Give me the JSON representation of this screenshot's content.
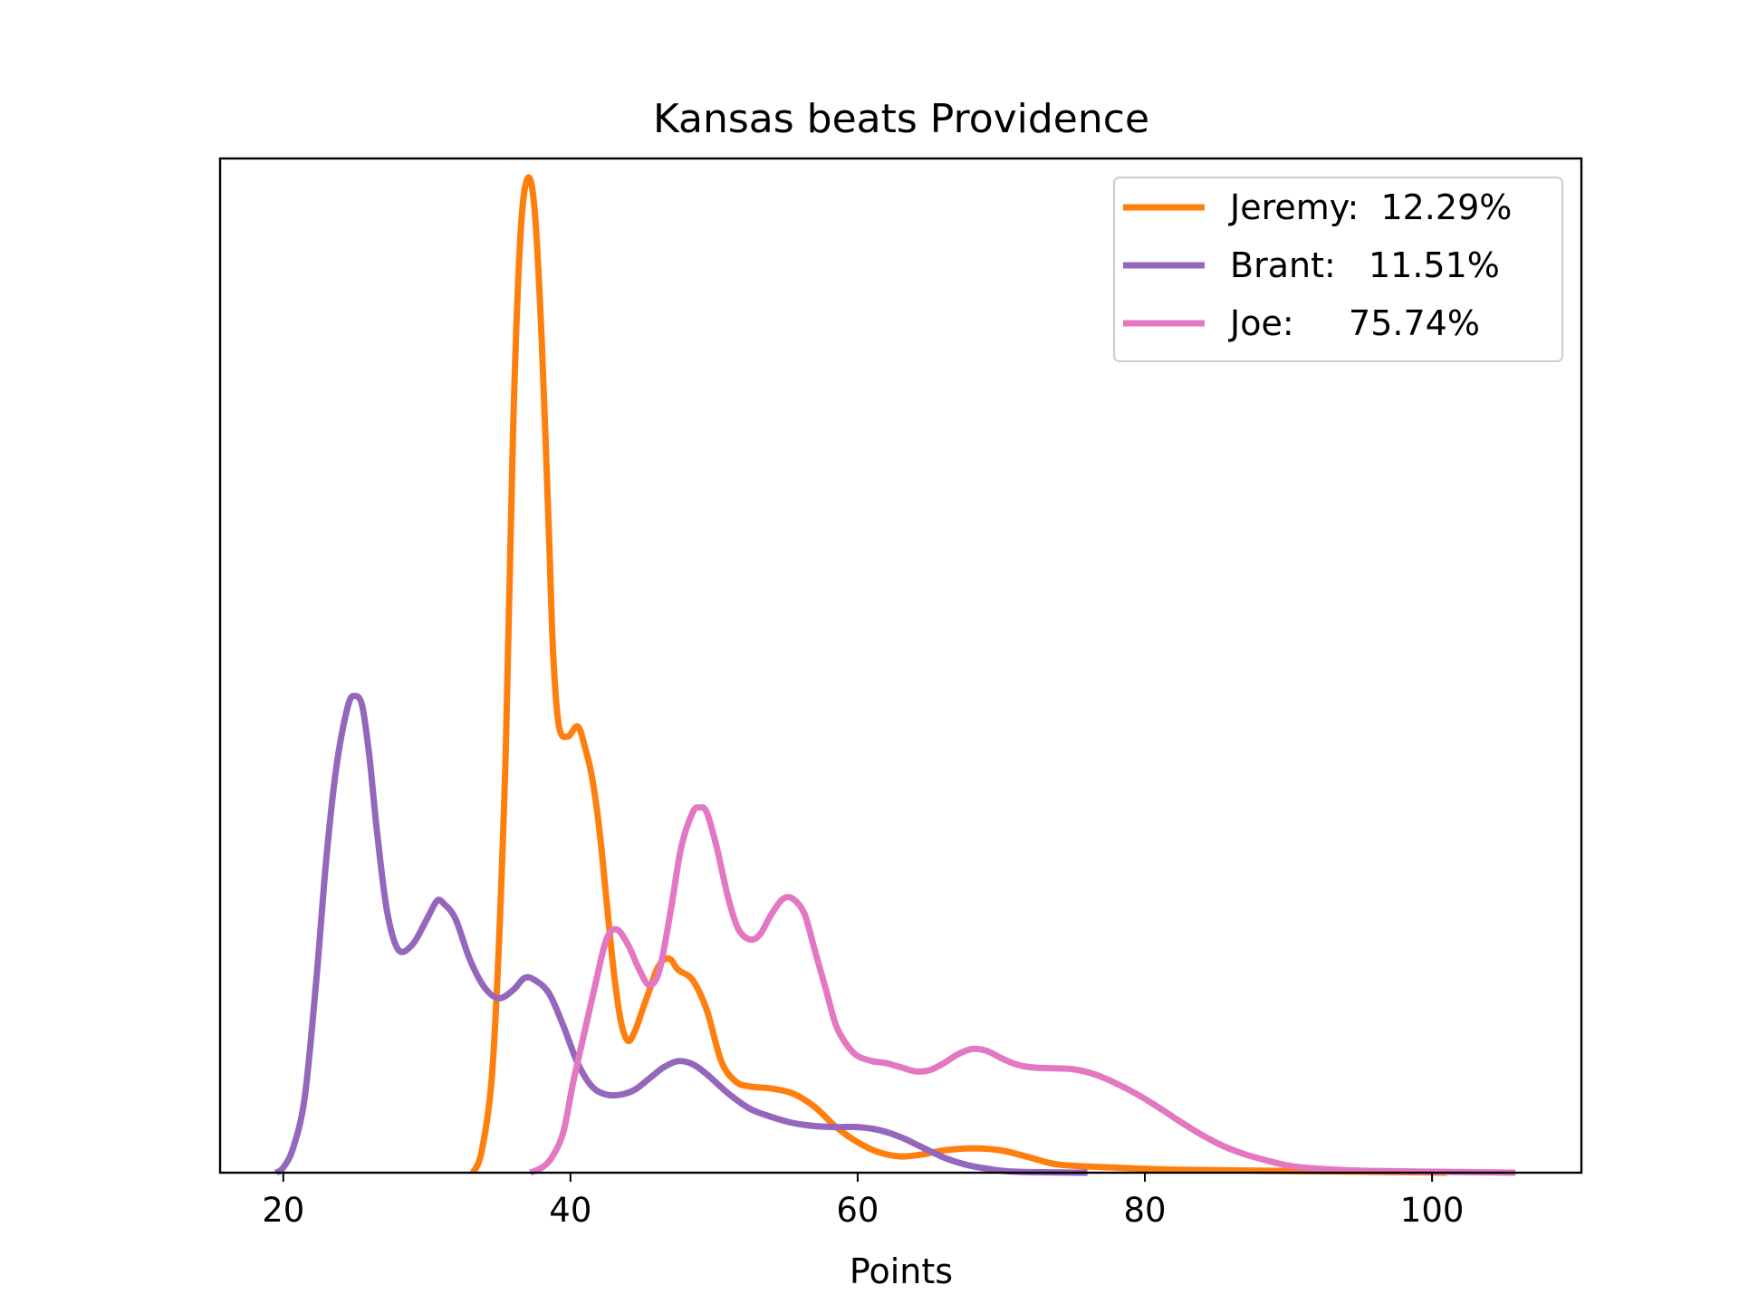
{
  "chart_data": {
    "type": "line",
    "title": "Kansas beats Providence",
    "xlabel": "Points",
    "ylabel": "",
    "xlim": [
      15.6,
      110.4
    ],
    "ylim": [
      0,
      1.0
    ],
    "x_ticks": [
      20,
      40,
      60,
      80,
      100
    ],
    "y_ticks_visible": false,
    "grid": false,
    "legend_position": "top-right",
    "series": [
      {
        "name": "Jeremy:  12.29%",
        "color": "#ff7f0e",
        "points": [
          [
            33.2,
            0.0
          ],
          [
            33.8,
            0.02
          ],
          [
            34.5,
            0.09
          ],
          [
            35.0,
            0.22
          ],
          [
            35.5,
            0.42
          ],
          [
            36.0,
            0.73
          ],
          [
            36.5,
            0.92
          ],
          [
            37.0,
            0.98
          ],
          [
            37.5,
            0.95
          ],
          [
            38.0,
            0.82
          ],
          [
            38.5,
            0.63
          ],
          [
            38.8,
            0.51
          ],
          [
            39.2,
            0.44
          ],
          [
            39.8,
            0.43
          ],
          [
            40.5,
            0.44
          ],
          [
            41.0,
            0.42
          ],
          [
            41.5,
            0.39
          ],
          [
            42.0,
            0.34
          ],
          [
            42.5,
            0.27
          ],
          [
            43.0,
            0.2
          ],
          [
            43.5,
            0.15
          ],
          [
            44.0,
            0.13
          ],
          [
            44.5,
            0.14
          ],
          [
            45.0,
            0.16
          ],
          [
            45.5,
            0.18
          ],
          [
            46.0,
            0.2
          ],
          [
            46.5,
            0.21
          ],
          [
            47.0,
            0.21
          ],
          [
            47.5,
            0.2
          ],
          [
            48.5,
            0.19
          ],
          [
            49.5,
            0.16
          ],
          [
            50.5,
            0.11
          ],
          [
            51.5,
            0.09
          ],
          [
            52.5,
            0.085
          ],
          [
            54.0,
            0.083
          ],
          [
            55.5,
            0.078
          ],
          [
            57.0,
            0.065
          ],
          [
            58.5,
            0.045
          ],
          [
            60.0,
            0.03
          ],
          [
            61.5,
            0.02
          ],
          [
            63.0,
            0.016
          ],
          [
            64.5,
            0.018
          ],
          [
            66.0,
            0.022
          ],
          [
            68.0,
            0.024
          ],
          [
            70.0,
            0.022
          ],
          [
            72.0,
            0.015
          ],
          [
            74.0,
            0.008
          ],
          [
            78.0,
            0.005
          ],
          [
            82.0,
            0.003
          ],
          [
            88.0,
            0.002
          ],
          [
            95.0,
            0.001
          ],
          [
            101.0,
            0.0
          ]
        ]
      },
      {
        "name": "Brant:   11.51%",
        "color": "#9467bd",
        "points": [
          [
            19.5,
            0.0
          ],
          [
            20.0,
            0.005
          ],
          [
            20.7,
            0.025
          ],
          [
            21.5,
            0.075
          ],
          [
            22.3,
            0.19
          ],
          [
            23.0,
            0.31
          ],
          [
            23.7,
            0.4
          ],
          [
            24.5,
            0.46
          ],
          [
            25.0,
            0.47
          ],
          [
            25.5,
            0.46
          ],
          [
            26.0,
            0.41
          ],
          [
            26.5,
            0.34
          ],
          [
            27.2,
            0.26
          ],
          [
            28.0,
            0.22
          ],
          [
            29.0,
            0.225
          ],
          [
            30.0,
            0.25
          ],
          [
            30.7,
            0.268
          ],
          [
            31.2,
            0.265
          ],
          [
            32.0,
            0.25
          ],
          [
            33.0,
            0.21
          ],
          [
            34.0,
            0.183
          ],
          [
            35.0,
            0.172
          ],
          [
            36.0,
            0.18
          ],
          [
            36.8,
            0.192
          ],
          [
            37.5,
            0.19
          ],
          [
            38.5,
            0.177
          ],
          [
            39.5,
            0.145
          ],
          [
            40.5,
            0.108
          ],
          [
            41.5,
            0.085
          ],
          [
            42.5,
            0.077
          ],
          [
            43.5,
            0.077
          ],
          [
            44.5,
            0.082
          ],
          [
            45.5,
            0.093
          ],
          [
            46.5,
            0.104
          ],
          [
            47.5,
            0.11
          ],
          [
            48.5,
            0.107
          ],
          [
            49.5,
            0.097
          ],
          [
            51.0,
            0.078
          ],
          [
            52.5,
            0.063
          ],
          [
            54.0,
            0.055
          ],
          [
            55.5,
            0.049
          ],
          [
            57.0,
            0.046
          ],
          [
            58.5,
            0.045
          ],
          [
            60.0,
            0.045
          ],
          [
            61.5,
            0.042
          ],
          [
            63.0,
            0.035
          ],
          [
            64.5,
            0.025
          ],
          [
            66.0,
            0.015
          ],
          [
            67.5,
            0.008
          ],
          [
            69.0,
            0.004
          ],
          [
            71.0,
            0.001
          ],
          [
            76.0,
            0.0
          ]
        ]
      },
      {
        "name": "Joe:     75.74%",
        "color": "#e377c2",
        "points": [
          [
            37.2,
            0.0
          ],
          [
            38.0,
            0.005
          ],
          [
            38.7,
            0.015
          ],
          [
            39.5,
            0.04
          ],
          [
            40.2,
            0.09
          ],
          [
            41.0,
            0.14
          ],
          [
            41.8,
            0.19
          ],
          [
            42.5,
            0.23
          ],
          [
            43.2,
            0.24
          ],
          [
            44.0,
            0.225
          ],
          [
            44.8,
            0.2
          ],
          [
            45.5,
            0.185
          ],
          [
            46.2,
            0.2
          ],
          [
            47.0,
            0.26
          ],
          [
            47.7,
            0.32
          ],
          [
            48.5,
            0.355
          ],
          [
            49.0,
            0.36
          ],
          [
            49.5,
            0.355
          ],
          [
            50.2,
            0.32
          ],
          [
            51.0,
            0.27
          ],
          [
            51.7,
            0.24
          ],
          [
            52.5,
            0.23
          ],
          [
            53.2,
            0.235
          ],
          [
            54.0,
            0.255
          ],
          [
            54.8,
            0.27
          ],
          [
            55.5,
            0.27
          ],
          [
            56.3,
            0.255
          ],
          [
            57.0,
            0.22
          ],
          [
            57.8,
            0.18
          ],
          [
            58.5,
            0.145
          ],
          [
            59.3,
            0.125
          ],
          [
            60.0,
            0.115
          ],
          [
            61.0,
            0.11
          ],
          [
            62.0,
            0.108
          ],
          [
            63.0,
            0.104
          ],
          [
            64.0,
            0.1
          ],
          [
            65.0,
            0.101
          ],
          [
            66.0,
            0.108
          ],
          [
            67.0,
            0.117
          ],
          [
            68.0,
            0.122
          ],
          [
            69.0,
            0.12
          ],
          [
            70.0,
            0.113
          ],
          [
            71.0,
            0.107
          ],
          [
            72.0,
            0.104
          ],
          [
            73.5,
            0.103
          ],
          [
            75.0,
            0.102
          ],
          [
            76.5,
            0.097
          ],
          [
            78.0,
            0.088
          ],
          [
            79.5,
            0.077
          ],
          [
            81.0,
            0.064
          ],
          [
            82.5,
            0.05
          ],
          [
            84.0,
            0.037
          ],
          [
            85.5,
            0.026
          ],
          [
            87.0,
            0.018
          ],
          [
            88.5,
            0.012
          ],
          [
            90.0,
            0.007
          ],
          [
            92.0,
            0.004
          ],
          [
            95.0,
            0.002
          ],
          [
            100.0,
            0.001
          ],
          [
            105.8,
            0.0
          ]
        ]
      }
    ]
  }
}
